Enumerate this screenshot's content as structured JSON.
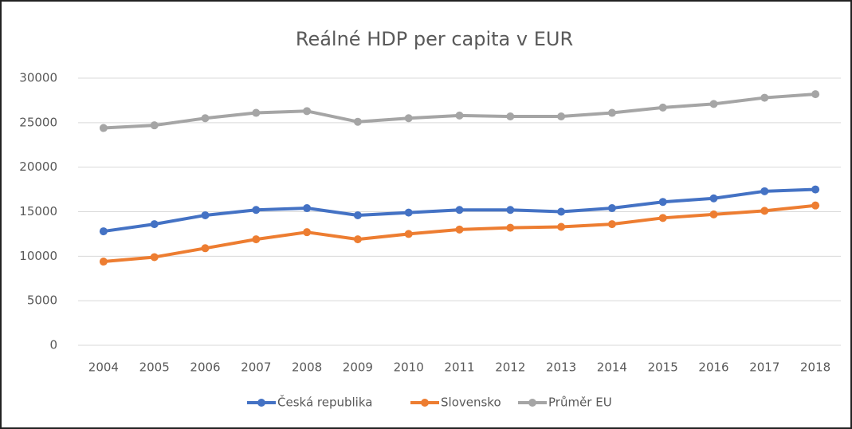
{
  "chart_data": {
    "type": "line",
    "title": "Reálné HDP per capita v EUR",
    "categories": [
      "2004",
      "2005",
      "2006",
      "2007",
      "2008",
      "2009",
      "2010",
      "2011",
      "2012",
      "2013",
      "2014",
      "2015",
      "2016",
      "2017",
      "2018"
    ],
    "series": [
      {
        "name": "Česká republika",
        "color": "#4472c4",
        "values": [
          12800,
          13600,
          14600,
          15200,
          15400,
          14600,
          14900,
          15200,
          15200,
          15000,
          15400,
          16100,
          16500,
          17300,
          17500
        ]
      },
      {
        "name": "Slovensko",
        "color": "#ed7d31",
        "values": [
          9400,
          9900,
          10900,
          11900,
          12700,
          11900,
          12500,
          13000,
          13200,
          13300,
          13600,
          14300,
          14700,
          15100,
          15700
        ]
      },
      {
        "name": "Průměr EU",
        "color": "#a5a5a5",
        "values": [
          24400,
          24700,
          25500,
          26100,
          26300,
          25100,
          25500,
          25800,
          25700,
          25700,
          26100,
          26700,
          27100,
          27800,
          28200
        ]
      }
    ],
    "ylim": [
      0,
      30000
    ],
    "yticks": [
      0,
      5000,
      10000,
      15000,
      20000,
      25000,
      30000
    ],
    "grid": true,
    "legend": "bottom"
  }
}
